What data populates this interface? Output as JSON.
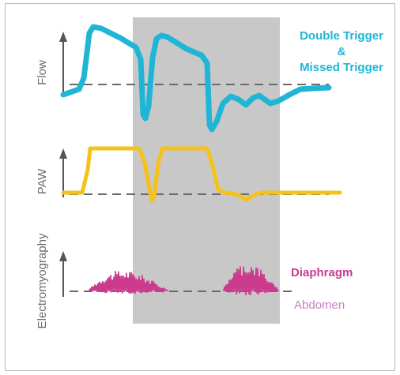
{
  "colors": {
    "flow": "#1fb6d6",
    "paw": "#f6c21a",
    "diaphragm": "#cc3a8e",
    "abdomen": "#c97fc8",
    "highlight": "#c8c8c8",
    "axis": "#555555"
  },
  "labels": {
    "flow_axis": "Flow",
    "paw_axis": "PAW",
    "emg_axis": "Electromyography",
    "event_line1": "Double Trigger",
    "event_line2": "&",
    "event_line3": "Missed Trigger",
    "diaphragm": "Diaphragm",
    "abdomen": "Abdomen"
  }
}
